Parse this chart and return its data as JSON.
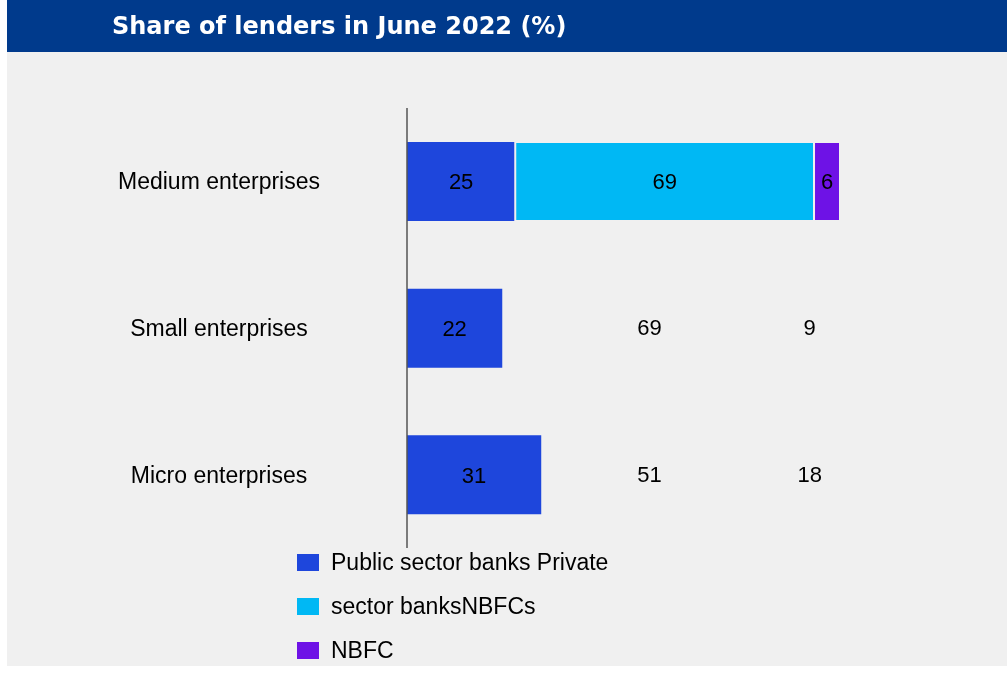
{
  "chart_data": {
    "type": "bar",
    "title": "Share of lenders in June 2022 (%)",
    "orientation": "horizontal",
    "stacked": true,
    "data_labels": true,
    "legend": "bottom",
    "tick_labels": "y",
    "categories": [
      "Medium enterprises",
      "Small enterprises",
      "Micro enterprises"
    ],
    "series": [
      {
        "name": "Public sector banks Private",
        "color": "#1e46dc",
        "values": [
          25,
          22,
          31
        ]
      },
      {
        "name": "sector banksNBFCs",
        "color": "#00b8f4",
        "values": [
          69,
          null,
          null
        ]
      },
      {
        "name": "NBFC",
        "color": "#6e12e6",
        "values": [
          6,
          null,
          null
        ]
      }
    ],
    "annotations": [
      "69",
      "51",
      "9",
      "18"
    ]
  }
}
